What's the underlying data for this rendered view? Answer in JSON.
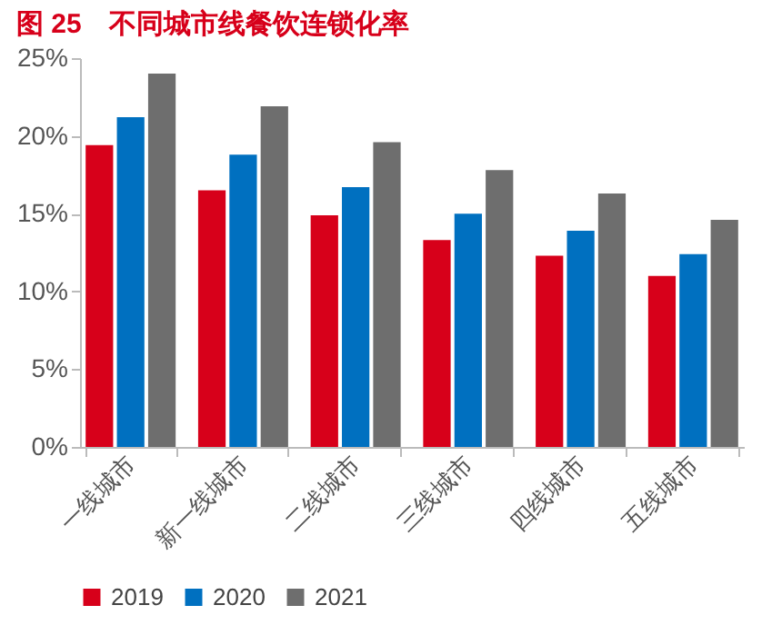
{
  "chart_data": {
    "type": "bar",
    "title": "图 25　不同城市线餐饮连锁化率",
    "categories": [
      "一线城市",
      "新一线城市",
      "二线城市",
      "三线城市",
      "四线城市",
      "五线城市"
    ],
    "series": [
      {
        "name": "2019",
        "color": "#d7001a",
        "values": [
          19.4,
          16.5,
          14.9,
          13.3,
          12.3,
          11.0
        ]
      },
      {
        "name": "2020",
        "color": "#0070c0",
        "values": [
          21.2,
          18.8,
          16.7,
          15.0,
          13.9,
          12.4
        ]
      },
      {
        "name": "2021",
        "color": "#6e6e6e",
        "values": [
          24.0,
          21.9,
          19.6,
          17.8,
          16.3,
          14.6
        ]
      }
    ],
    "ylim": [
      0,
      25
    ],
    "yticks": [
      {
        "value": 0,
        "label": "0%"
      },
      {
        "value": 5,
        "label": "5%"
      },
      {
        "value": 10,
        "label": "10%"
      },
      {
        "value": 15,
        "label": "15%"
      },
      {
        "value": 20,
        "label": "20%"
      },
      {
        "value": 25,
        "label": "25%"
      }
    ],
    "grid": false,
    "legend": "bottom"
  }
}
